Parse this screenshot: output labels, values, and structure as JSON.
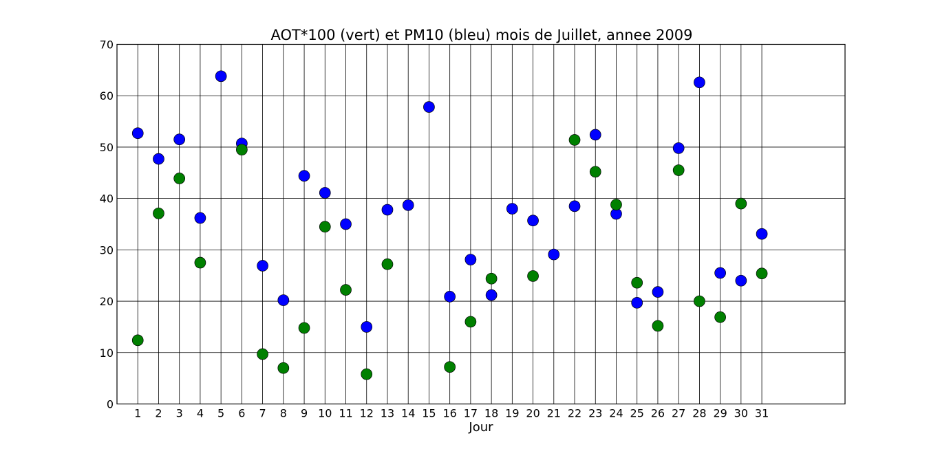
{
  "chart_data": {
    "type": "scatter",
    "title": "AOT*100 (vert) et PM10 (bleu) mois de Juillet, annee 2009",
    "xlabel": "Jour",
    "ylabel": "",
    "xlim": [
      0,
      35
    ],
    "ylim": [
      0,
      70
    ],
    "x_ticks": [
      1,
      2,
      3,
      4,
      5,
      6,
      7,
      8,
      9,
      10,
      11,
      12,
      13,
      14,
      15,
      16,
      17,
      18,
      19,
      20,
      21,
      22,
      23,
      24,
      25,
      26,
      27,
      28,
      29,
      30,
      31
    ],
    "y_ticks": [
      0,
      10,
      20,
      30,
      40,
      50,
      60,
      70
    ],
    "grid": true,
    "series": [
      {
        "color": "#0000ff",
        "points": [
          {
            "x": 1,
            "y": 52.7
          },
          {
            "x": 2,
            "y": 47.7
          },
          {
            "x": 3,
            "y": 51.5
          },
          {
            "x": 4,
            "y": 36.2
          },
          {
            "x": 5,
            "y": 63.8
          },
          {
            "x": 6,
            "y": 50.7
          },
          {
            "x": 7,
            "y": 26.9
          },
          {
            "x": 8,
            "y": 20.2
          },
          {
            "x": 9,
            "y": 44.4
          },
          {
            "x": 10,
            "y": 41.1
          },
          {
            "x": 11,
            "y": 35.0
          },
          {
            "x": 12,
            "y": 15.0
          },
          {
            "x": 13,
            "y": 37.8
          },
          {
            "x": 14,
            "y": 38.7
          },
          {
            "x": 15,
            "y": 57.8
          },
          {
            "x": 16,
            "y": 20.9
          },
          {
            "x": 17,
            "y": 28.1
          },
          {
            "x": 18,
            "y": 21.2
          },
          {
            "x": 19,
            "y": 38.0
          },
          {
            "x": 20,
            "y": 35.7
          },
          {
            "x": 21,
            "y": 29.1
          },
          {
            "x": 22,
            "y": 38.5
          },
          {
            "x": 23,
            "y": 52.4
          },
          {
            "x": 24,
            "y": 37.0
          },
          {
            "x": 25,
            "y": 19.7
          },
          {
            "x": 26,
            "y": 21.8
          },
          {
            "x": 27,
            "y": 49.8
          },
          {
            "x": 28,
            "y": 62.6
          },
          {
            "x": 29,
            "y": 25.5
          },
          {
            "x": 30,
            "y": 24.0
          },
          {
            "x": 31,
            "y": 33.1
          }
        ]
      },
      {
        "color": "#008000",
        "points": [
          {
            "x": 1,
            "y": 12.4
          },
          {
            "x": 2,
            "y": 37.1
          },
          {
            "x": 3,
            "y": 43.9
          },
          {
            "x": 4,
            "y": 27.5
          },
          {
            "x": 6,
            "y": 49.5
          },
          {
            "x": 7,
            "y": 9.7
          },
          {
            "x": 8,
            "y": 7.0
          },
          {
            "x": 9,
            "y": 14.8
          },
          {
            "x": 10,
            "y": 34.5
          },
          {
            "x": 11,
            "y": 22.2
          },
          {
            "x": 12,
            "y": 5.8
          },
          {
            "x": 13,
            "y": 27.2
          },
          {
            "x": 16,
            "y": 7.2
          },
          {
            "x": 17,
            "y": 16.0
          },
          {
            "x": 18,
            "y": 24.4
          },
          {
            "x": 20,
            "y": 24.9
          },
          {
            "x": 22,
            "y": 51.4
          },
          {
            "x": 23,
            "y": 45.2
          },
          {
            "x": 24,
            "y": 38.8
          },
          {
            "x": 25,
            "y": 23.6
          },
          {
            "x": 26,
            "y": 15.2
          },
          {
            "x": 27,
            "y": 45.5
          },
          {
            "x": 28,
            "y": 20.0
          },
          {
            "x": 29,
            "y": 16.9
          },
          {
            "x": 30,
            "y": 39.0
          },
          {
            "x": 31,
            "y": 25.4
          }
        ]
      }
    ]
  }
}
